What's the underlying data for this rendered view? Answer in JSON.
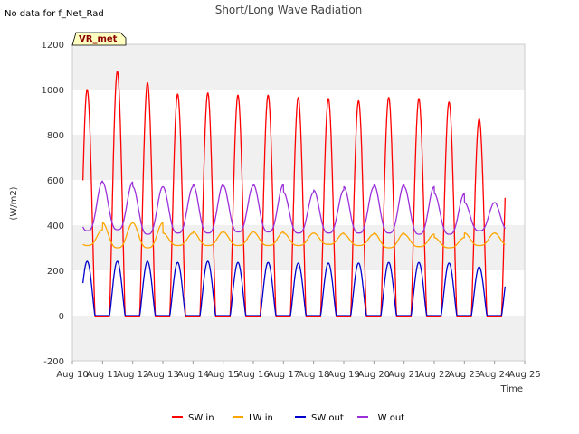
{
  "chart_data": {
    "type": "line",
    "title": "Short/Long Wave Radiation",
    "note": "No data for f_Net_Rad",
    "badge": "VR_met",
    "xlabel": "Time",
    "ylabel": "(W/m2)",
    "ylim": [
      -200,
      1200
    ],
    "yticks": [
      -200,
      0,
      200,
      400,
      600,
      800,
      1000,
      1200
    ],
    "xlim": [
      10,
      25
    ],
    "xticks": [
      10,
      11,
      12,
      13,
      14,
      15,
      16,
      17,
      18,
      19,
      20,
      21,
      22,
      23,
      24,
      25
    ],
    "xtick_labels": [
      "Aug 10",
      "Aug 11",
      "Aug 12",
      "Aug 13",
      "Aug 14",
      "Aug 15",
      "Aug 16",
      "Aug 17",
      "Aug 18",
      "Aug 19",
      "Aug 20",
      "Aug 21",
      "Aug 22",
      "Aug 23",
      "Aug 24",
      "Aug 25"
    ],
    "grid": "horizontal bands",
    "legend_position": "bottom",
    "series": [
      {
        "name": "SW in",
        "color": "#ff0000",
        "type": "daily_peak",
        "peaks": [
          1000,
          1080,
          1030,
          980,
          985,
          975,
          975,
          965,
          960,
          950,
          965,
          960,
          945,
          870
        ],
        "night": -5
      },
      {
        "name": "LW in",
        "color": "#ffa500",
        "type": "daily_wave",
        "peaks": [
          380,
          410,
          410,
          365,
          370,
          370,
          370,
          365,
          365,
          360,
          365,
          360,
          345,
          365
        ],
        "troughs": [
          310,
          300,
          300,
          310,
          310,
          310,
          310,
          310,
          315,
          310,
          300,
          305,
          300,
          310
        ]
      },
      {
        "name": "SW out",
        "color": "#0000cc",
        "type": "daily_peak",
        "peaks": [
          240,
          240,
          240,
          235,
          240,
          235,
          235,
          232,
          232,
          232,
          235,
          235,
          232,
          215
        ],
        "night": 0
      },
      {
        "name": "LW out",
        "color": "#9b30d9",
        "type": "daily_wave",
        "peaks": [
          595,
          590,
          570,
          570,
          580,
          575,
          580,
          545,
          555,
          570,
          580,
          570,
          540,
          500
        ],
        "troughs": [
          375,
          380,
          360,
          365,
          365,
          370,
          370,
          365,
          365,
          365,
          365,
          360,
          360,
          375
        ]
      }
    ],
    "start": 10.35,
    "end": 24.35
  }
}
